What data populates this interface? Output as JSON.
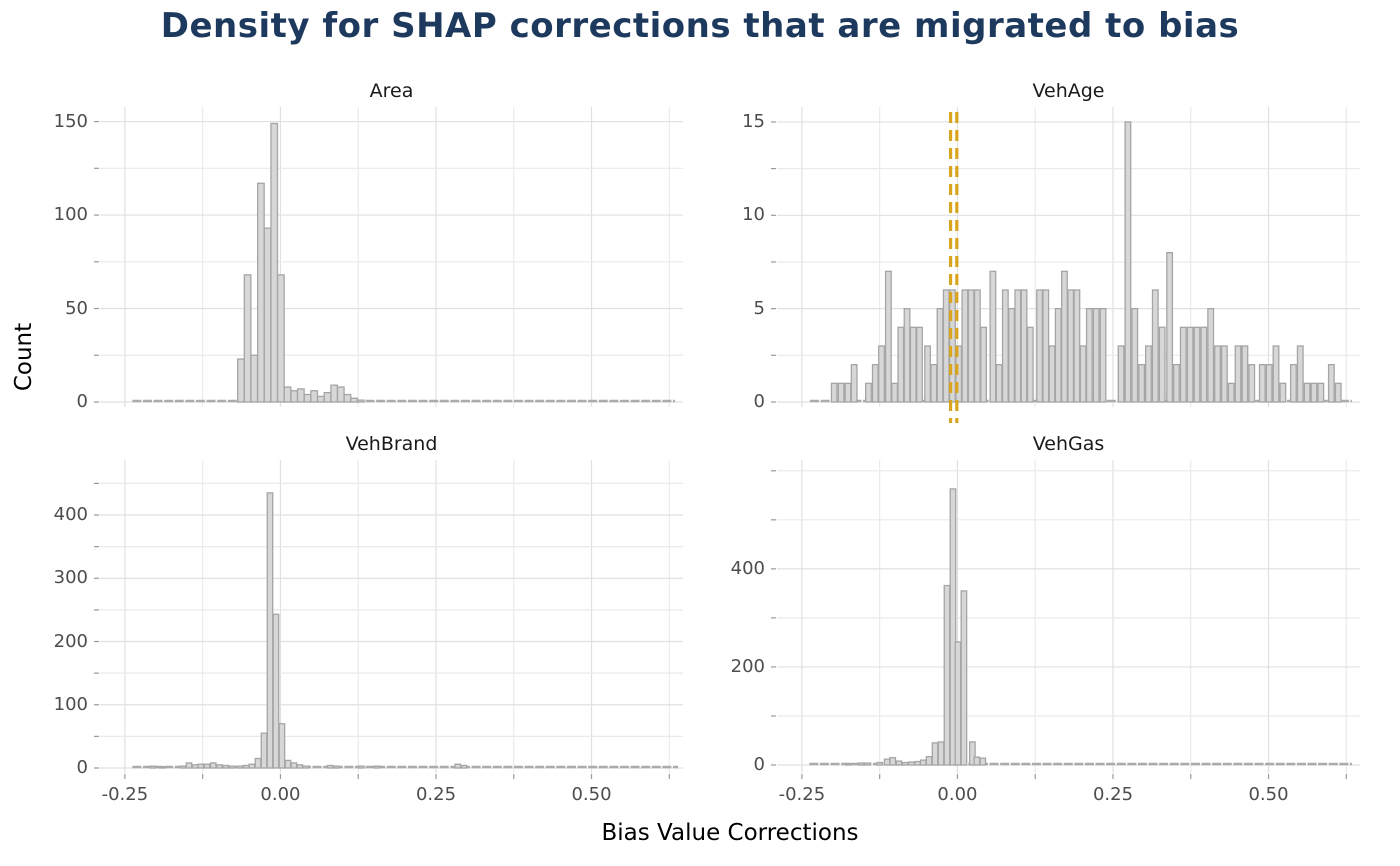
{
  "title": "Density for SHAP corrections that are migrated to bias",
  "axis": {
    "x_label": "Bias Value Corrections",
    "y_label": "Count"
  },
  "colors": {
    "title": "#1D3A5E",
    "bar_fill": "#D7D7D7",
    "bar_stroke": "#A5A5A5",
    "grid": "#E4E4E4",
    "tick_mark": "#9A9A9A",
    "tick_label": "#4D4D4D",
    "reference_line": "#D9A41E",
    "background": "#FFFFFF"
  },
  "x_axis": {
    "min": -0.29,
    "max": 0.647,
    "ticks": [
      -0.25,
      0.0,
      0.25,
      0.5
    ],
    "tick_labels": [
      "-0.25",
      "0.00",
      "0.25",
      "0.50"
    ],
    "minor_step": 0.125,
    "grid_from": -0.25,
    "grid_to": 0.625
  },
  "chart_data": [
    {
      "type": "histogram",
      "title": "Area",
      "position": "top-left",
      "ylim": [
        0,
        157.8
      ],
      "yticks": {
        "values": [
          0,
          50,
          100,
          150
        ],
        "labels": [
          "0",
          "50",
          "100",
          "150"
        ]
      },
      "y_grid_step": 25,
      "bar_width": 0.0105,
      "baseline": {
        "from": -0.238,
        "to": 0.634,
        "count": 1
      },
      "bars": [
        [
          -0.0635,
          23
        ],
        [
          -0.0528,
          68
        ],
        [
          -0.0421,
          25
        ],
        [
          -0.0314,
          117
        ],
        [
          -0.0207,
          93
        ],
        [
          -0.01,
          149
        ],
        [
          0.0007,
          68
        ],
        [
          0.0114,
          8
        ],
        [
          0.0221,
          6
        ],
        [
          0.0328,
          7
        ],
        [
          0.0435,
          4
        ],
        [
          0.0542,
          6
        ],
        [
          0.0649,
          3
        ],
        [
          0.0756,
          5
        ],
        [
          0.0863,
          9
        ],
        [
          0.097,
          8
        ],
        [
          0.1077,
          4
        ],
        [
          0.1184,
          2
        ],
        [
          0.1291,
          1
        ]
      ]
    },
    {
      "type": "histogram",
      "title": "VehAge",
      "position": "top-right",
      "ylim": [
        0,
        15.8
      ],
      "yticks": {
        "values": [
          0,
          5,
          10,
          15
        ],
        "labels": [
          "0",
          "5",
          "10",
          "15"
        ]
      },
      "y_grid_step": 2.5,
      "bar_width": 0.009,
      "baseline": {
        "from": -0.237,
        "to": 0.634,
        "count": 0.05
      },
      "vlines": {
        "x": [
          -0.011,
          -0.001
        ],
        "style": "dashed",
        "color": "#D9A41E"
      },
      "bars": [
        [
          -0.198,
          1
        ],
        [
          -0.187,
          1
        ],
        [
          -0.176,
          1
        ],
        [
          -0.166,
          2
        ],
        [
          -0.143,
          1
        ],
        [
          -0.132,
          2
        ],
        [
          -0.122,
          3
        ],
        [
          -0.111,
          7
        ],
        [
          -0.101,
          1
        ],
        [
          -0.091,
          4
        ],
        [
          -0.081,
          5
        ],
        [
          -0.071,
          4
        ],
        [
          -0.061,
          4
        ],
        [
          -0.048,
          3
        ],
        [
          -0.038,
          2
        ],
        [
          -0.028,
          5
        ],
        [
          -0.018,
          6
        ],
        [
          -0.008,
          6
        ],
        [
          0.002,
          3
        ],
        [
          0.012,
          6
        ],
        [
          0.022,
          6
        ],
        [
          0.032,
          6
        ],
        [
          0.042,
          4
        ],
        [
          0.057,
          7
        ],
        [
          0.067,
          2
        ],
        [
          0.077,
          6
        ],
        [
          0.087,
          5
        ],
        [
          0.097,
          6
        ],
        [
          0.107,
          6
        ],
        [
          0.117,
          4
        ],
        [
          0.132,
          6
        ],
        [
          0.142,
          6
        ],
        [
          0.152,
          3
        ],
        [
          0.162,
          5
        ],
        [
          0.172,
          7
        ],
        [
          0.182,
          6
        ],
        [
          0.192,
          6
        ],
        [
          0.202,
          3
        ],
        [
          0.212,
          5
        ],
        [
          0.223,
          5
        ],
        [
          0.234,
          5
        ],
        [
          0.263,
          3
        ],
        [
          0.274,
          15
        ],
        [
          0.285,
          5
        ],
        [
          0.296,
          2
        ],
        [
          0.307,
          3
        ],
        [
          0.318,
          6
        ],
        [
          0.329,
          4
        ],
        [
          0.341,
          8
        ],
        [
          0.352,
          2
        ],
        [
          0.363,
          4
        ],
        [
          0.374,
          4
        ],
        [
          0.385,
          4
        ],
        [
          0.396,
          4
        ],
        [
          0.407,
          5
        ],
        [
          0.418,
          3
        ],
        [
          0.429,
          3
        ],
        [
          0.44,
          1
        ],
        [
          0.451,
          3
        ],
        [
          0.462,
          3
        ],
        [
          0.473,
          2
        ],
        [
          0.49,
          2
        ],
        [
          0.501,
          2
        ],
        [
          0.512,
          3
        ],
        [
          0.523,
          1
        ],
        [
          0.54,
          2
        ],
        [
          0.551,
          3
        ],
        [
          0.562,
          1
        ],
        [
          0.573,
          1
        ],
        [
          0.584,
          1
        ],
        [
          0.601,
          2
        ],
        [
          0.612,
          1
        ]
      ]
    },
    {
      "type": "histogram",
      "title": "VehBrand",
      "position": "bottom-left",
      "ylim": [
        0,
        487
      ],
      "yticks": {
        "values": [
          0,
          100,
          200,
          300,
          400
        ],
        "labels": [
          "0",
          "100",
          "200",
          "300",
          "400"
        ]
      },
      "y_grid_step": 50,
      "bar_width": 0.0088,
      "baseline": {
        "from": -0.238,
        "to": 0.639,
        "count": 2
      },
      "bars": [
        [
          -0.205,
          3
        ],
        [
          -0.19,
          2
        ],
        [
          -0.157,
          3
        ],
        [
          -0.147,
          8
        ],
        [
          -0.137,
          5
        ],
        [
          -0.128,
          6
        ],
        [
          -0.118,
          6
        ],
        [
          -0.108,
          8
        ],
        [
          -0.098,
          5
        ],
        [
          -0.088,
          4
        ],
        [
          -0.078,
          3
        ],
        [
          -0.065,
          3
        ],
        [
          -0.055,
          4
        ],
        [
          -0.046,
          6
        ],
        [
          -0.036,
          15
        ],
        [
          -0.0264,
          55
        ],
        [
          -0.0168,
          435
        ],
        [
          -0.0072,
          243
        ],
        [
          0.0024,
          70
        ],
        [
          0.012,
          12
        ],
        [
          0.0216,
          8
        ],
        [
          0.0312,
          5
        ],
        [
          0.0408,
          3
        ],
        [
          0.08,
          4
        ],
        [
          0.09,
          3
        ],
        [
          0.13,
          3
        ],
        [
          0.155,
          3
        ],
        [
          0.285,
          6
        ],
        [
          0.295,
          4
        ]
      ]
    },
    {
      "type": "histogram",
      "title": "VehGas",
      "position": "bottom-right",
      "ylim": [
        0,
        622
      ],
      "yticks": {
        "values": [
          0,
          200,
          400
        ],
        "labels": [
          "0",
          "200",
          "400"
        ]
      },
      "y_grid_step": 100,
      "bar_width": 0.0088,
      "baseline": {
        "from": -0.238,
        "to": 0.634,
        "count": 2
      },
      "bars": [
        [
          -0.175,
          3
        ],
        [
          -0.155,
          4
        ],
        [
          -0.145,
          4
        ],
        [
          -0.125,
          5
        ],
        [
          -0.113,
          12
        ],
        [
          -0.104,
          15
        ],
        [
          -0.094,
          8
        ],
        [
          -0.084,
          5
        ],
        [
          -0.074,
          6
        ],
        [
          -0.064,
          7
        ],
        [
          -0.055,
          10
        ],
        [
          -0.0456,
          17
        ],
        [
          -0.036,
          45
        ],
        [
          -0.0264,
          47
        ],
        [
          -0.0168,
          366
        ],
        [
          -0.0072,
          563
        ],
        [
          0.0008,
          251
        ],
        [
          0.0104,
          355
        ],
        [
          0.024,
          47
        ],
        [
          0.0312,
          16
        ],
        [
          0.0408,
          14
        ]
      ]
    }
  ]
}
